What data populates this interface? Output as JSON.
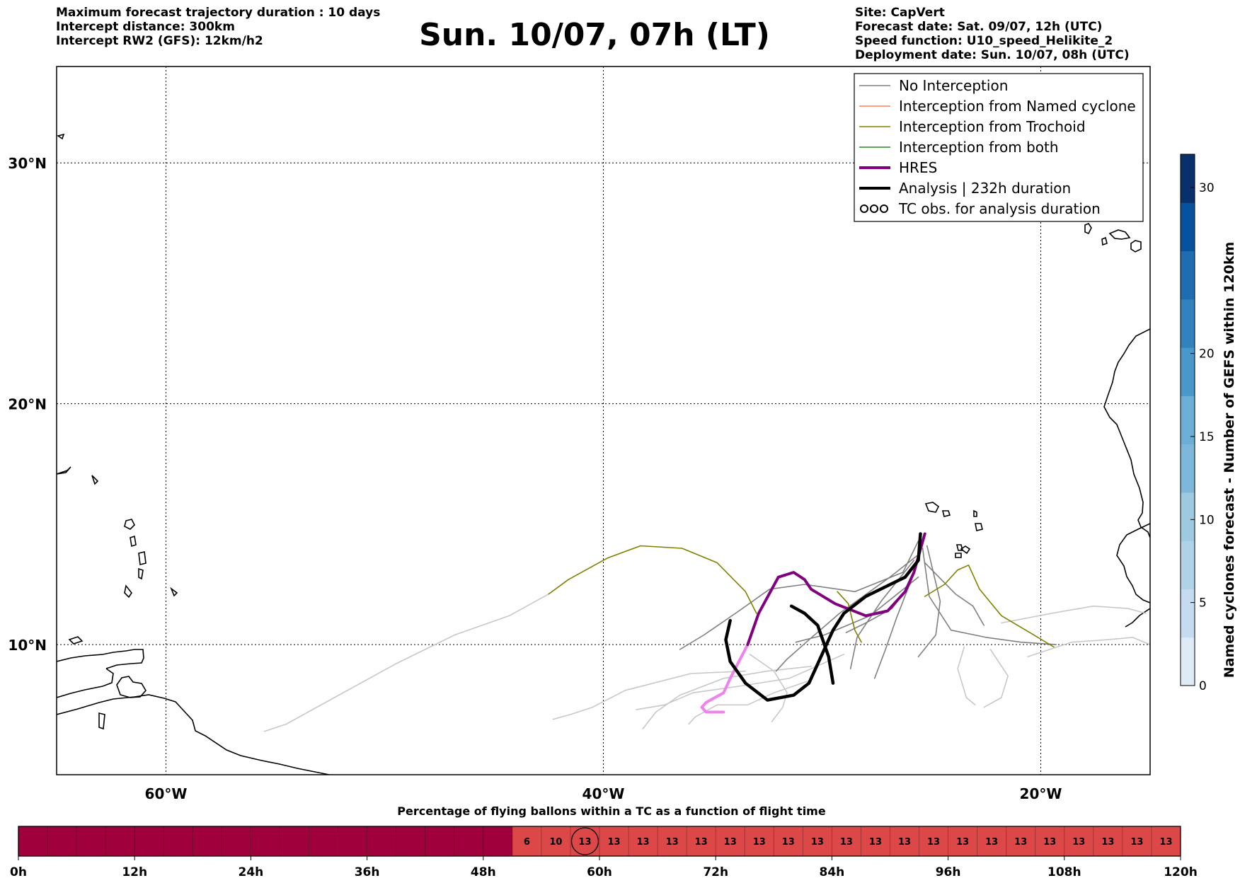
{
  "header": {
    "left_lines": [
      "Maximum forecast trajectory duration : 10 days",
      "Intercept distance: 300km",
      "Intercept RW2 (GFS):  12km/h2"
    ],
    "title": "Sun. 10/07, 07h (LT)",
    "right_lines": [
      "Site: CapVert",
      "Forecast date: Sat. 09/07, 12h (UTC)",
      "Speed function: U10_speed_Helikite_2",
      "Deployment date: Sun. 10/07, 08h (UTC)"
    ]
  },
  "colors": {
    "no_interception": "#808080",
    "named_cyclone": "#ff7f50",
    "trochoid": "#808000",
    "both": "#228b22",
    "hres": "#800080",
    "hres_light": "#ee82ee",
    "analysis": "#000000",
    "ensemble_light": "#c8c8c8",
    "bar_dark": "#a0003c",
    "bar_light": "#dc4848"
  },
  "chart_data": [
    {
      "type": "line",
      "subtype": "map-trajectories",
      "xaxis": {
        "ticks": [
          "60°W",
          "40°W",
          "20°W"
        ],
        "tick_values": [
          -60,
          -40,
          -20
        ],
        "range": [
          -65,
          -15
        ]
      },
      "yaxis": {
        "ticks": [
          "10°N",
          "20°N",
          "30°N"
        ],
        "tick_values": [
          10,
          20,
          30
        ],
        "range": [
          4.6,
          34
        ]
      },
      "grid": true,
      "legend": {
        "position": "top-right",
        "entries": [
          {
            "label": "No Interception",
            "color": "#808080",
            "style": "line"
          },
          {
            "label": "Interception from Named cyclone",
            "color": "#ff7f50",
            "style": "line"
          },
          {
            "label": "Interception from Trochoid",
            "color": "#808000",
            "style": "line"
          },
          {
            "label": "Interception from both",
            "color": "#228b22",
            "style": "line"
          },
          {
            "label": "HRES",
            "color": "#800080",
            "style": "thick"
          },
          {
            "label": "Analysis | 232h duration",
            "color": "#000000",
            "style": "thick"
          },
          {
            "label": "TC obs. for analysis duration",
            "color": "#000000",
            "style": "symbol"
          }
        ]
      },
      "series": [
        {
          "group": "analysis",
          "points": [
            [
              -25.5,
              14.6
            ],
            [
              -25.6,
              13.5
            ],
            [
              -26.2,
              12.8
            ],
            [
              -28,
              12
            ],
            [
              -29,
              11.3
            ],
            [
              -29.5,
              10.6
            ],
            [
              -30,
              9.6
            ],
            [
              -30.6,
              8.4
            ],
            [
              -31.3,
              7.9
            ],
            [
              -32.5,
              7.7
            ],
            [
              -33.5,
              8.4
            ],
            [
              -34.2,
              9.3
            ],
            [
              -34.4,
              10.2
            ],
            [
              -34.2,
              11
            ]
          ]
        },
        {
          "group": "analysis",
          "points": [
            [
              -29.5,
              8.4
            ],
            [
              -29.7,
              9.5
            ],
            [
              -30.2,
              10.8
            ],
            [
              -30.8,
              11.3
            ],
            [
              -31.4,
              11.6
            ]
          ]
        },
        {
          "group": "hres",
          "points": [
            [
              -25.3,
              14.6
            ],
            [
              -25.8,
              13
            ],
            [
              -26.2,
              12.2
            ],
            [
              -27,
              11.4
            ],
            [
              -28,
              11.2
            ],
            [
              -29.4,
              11.7
            ],
            [
              -30.5,
              12.3
            ],
            [
              -30.8,
              12.7
            ],
            [
              -31.3,
              13.0
            ],
            [
              -32,
              12.8
            ],
            [
              -32.9,
              11.3
            ],
            [
              -33.4,
              10
            ]
          ]
        },
        {
          "group": "hres_light",
          "points": [
            [
              -33.4,
              10
            ],
            [
              -34.2,
              8.6
            ],
            [
              -34.5,
              8
            ],
            [
              -35.3,
              7.6
            ],
            [
              -35.5,
              7.4
            ],
            [
              -35.3,
              7.2
            ],
            [
              -34.5,
              7.2
            ]
          ]
        },
        {
          "group": "trochoid",
          "points": [
            [
              -33,
              11.3
            ],
            [
              -33.5,
              12.2
            ],
            [
              -34.8,
              13.4
            ],
            [
              -36.4,
              14.0
            ],
            [
              -38.3,
              14.1
            ],
            [
              -39.8,
              13.6
            ],
            [
              -41.6,
              12.7
            ],
            [
              -42.5,
              12.1
            ]
          ]
        },
        {
          "group": "trochoid",
          "points": [
            [
              -25.3,
              12
            ],
            [
              -24.4,
              12.5
            ],
            [
              -23.8,
              13.1
            ],
            [
              -23.3,
              13.3
            ],
            [
              -22.8,
              12.3
            ],
            [
              -21.8,
              11.2
            ],
            [
              -20.5,
              10.5
            ],
            [
              -19.4,
              9.9
            ]
          ]
        },
        {
          "group": "trochoid",
          "points": [
            [
              -29.3,
              12.2
            ],
            [
              -28.8,
              11.7
            ],
            [
              -28.5,
              10.6
            ],
            [
              -28.2,
              10.1
            ]
          ]
        },
        {
          "group": "no_interception",
          "points": [
            [
              -25.6,
              14.3
            ],
            [
              -26.3,
              13
            ],
            [
              -28.5,
              12.2
            ],
            [
              -30.8,
              12.5
            ],
            [
              -32.4,
              12.3
            ],
            [
              -33.8,
              11.4
            ],
            [
              -35.4,
              10.4
            ],
            [
              -36.5,
              9.8
            ]
          ]
        },
        {
          "group": "no_interception",
          "points": [
            [
              -25.4,
              14
            ],
            [
              -25.1,
              12
            ],
            [
              -24.1,
              10.6
            ],
            [
              -22.5,
              10.3
            ],
            [
              -20.9,
              10.1
            ],
            [
              -19.3,
              10
            ]
          ]
        },
        {
          "group": "no_interception",
          "points": [
            [
              -25.8,
              13.5
            ],
            [
              -27.3,
              11.8
            ],
            [
              -28.4,
              10.3
            ],
            [
              -28.7,
              9
            ]
          ]
        },
        {
          "group": "no_interception",
          "points": [
            [
              -25.5,
              13.8
            ],
            [
              -26.9,
              12.8
            ],
            [
              -29.2,
              11.3
            ],
            [
              -30.6,
              10.2
            ],
            [
              -31.6,
              9.4
            ],
            [
              -32.1,
              8.9
            ]
          ]
        },
        {
          "group": "no_interception",
          "points": [
            [
              -25.2,
              14.1
            ],
            [
              -24.6,
              11.8
            ],
            [
              -24.8,
              10.4
            ],
            [
              -25.6,
              9.5
            ]
          ]
        },
        {
          "group": "no_interception",
          "points": [
            [
              -25.7,
              13.2
            ],
            [
              -26.6,
              11.1
            ],
            [
              -27.1,
              9.8
            ],
            [
              -27.6,
              8.6
            ]
          ]
        },
        {
          "group": "no_interception",
          "points": [
            [
              -25.3,
              13.4
            ],
            [
              -23.9,
              12.1
            ],
            [
              -23.1,
              11.6
            ],
            [
              -22.6,
              10.8
            ]
          ]
        },
        {
          "group": "no_interception",
          "points": [
            [
              -25.6,
              12.8
            ],
            [
              -27.8,
              11.2
            ],
            [
              -29.9,
              10.4
            ],
            [
              -31.2,
              10.1
            ]
          ]
        },
        {
          "group": "no_interception",
          "points": [
            [
              -25.9,
              12.6
            ],
            [
              -26.8,
              11.5
            ],
            [
              -28,
              10.9
            ],
            [
              -28.9,
              10.5
            ]
          ]
        },
        {
          "group": "ensemble_light",
          "points": [
            [
              -42.5,
              12.1
            ],
            [
              -44.3,
              11.2
            ],
            [
              -46.8,
              10.4
            ],
            [
              -49.5,
              9.2
            ],
            [
              -52.3,
              7.8
            ],
            [
              -54.5,
              6.7
            ],
            [
              -55.5,
              6.4
            ]
          ]
        },
        {
          "group": "ensemble_light",
          "points": [
            [
              -33.5,
              8.9
            ],
            [
              -36,
              8.8
            ],
            [
              -39,
              8.1
            ],
            [
              -40.5,
              7.4
            ],
            [
              -41.5,
              7.1
            ],
            [
              -42.3,
              6.9
            ]
          ]
        },
        {
          "group": "ensemble_light",
          "points": [
            [
              -30.5,
              9.1
            ],
            [
              -32.5,
              8.9
            ],
            [
              -34.5,
              8.6
            ],
            [
              -36.5,
              7.9
            ],
            [
              -37.6,
              7.2
            ],
            [
              -38.2,
              6.5
            ]
          ]
        },
        {
          "group": "ensemble_light",
          "points": [
            [
              -29,
              9.6
            ],
            [
              -31.5,
              8.6
            ],
            [
              -33.6,
              8.3
            ],
            [
              -35.9,
              8.0
            ],
            [
              -37.2,
              7.5
            ],
            [
              -38.5,
              7.3
            ]
          ]
        },
        {
          "group": "ensemble_light",
          "points": [
            [
              -30.6,
              8.5
            ],
            [
              -32.2,
              8.0
            ],
            [
              -33.4,
              7.5
            ],
            [
              -34.8,
              7.5
            ],
            [
              -35.8,
              7.0
            ],
            [
              -36.1,
              6.7
            ]
          ]
        },
        {
          "group": "ensemble_light",
          "points": [
            [
              -21.8,
              10.9
            ],
            [
              -19.5,
              11.3
            ],
            [
              -17.6,
              11.6
            ],
            [
              -16,
              11.5
            ],
            [
              -15.2,
              11.3
            ]
          ]
        },
        {
          "group": "ensemble_light",
          "points": [
            [
              -20.6,
              9.5
            ],
            [
              -18.6,
              10.1
            ],
            [
              -17,
              10.2
            ],
            [
              -15.8,
              10.3
            ],
            [
              -15,
              10.0
            ]
          ]
        },
        {
          "group": "ensemble_light",
          "points": [
            [
              -22.3,
              9.8
            ],
            [
              -21.5,
              8.7
            ],
            [
              -21.8,
              7.8
            ],
            [
              -22.6,
              7.4
            ]
          ]
        },
        {
          "group": "ensemble_light",
          "points": [
            [
              -23.5,
              9.9
            ],
            [
              -23.8,
              9.0
            ],
            [
              -23.4,
              7.8
            ],
            [
              -23.0,
              7.5
            ]
          ]
        },
        {
          "group": "ensemble_light",
          "points": [
            [
              -33.3,
              9.6
            ],
            [
              -32.2,
              8.9
            ],
            [
              -31.6,
              8.0
            ],
            [
              -31.8,
              7.4
            ],
            [
              -32.3,
              6.8
            ]
          ]
        }
      ]
    },
    {
      "type": "bar",
      "subtype": "segmented-timeline",
      "title": "Percentage of flying ballons within a TC as a function of flight time",
      "x_ticks": [
        "0h",
        "12h",
        "24h",
        "36h",
        "48h",
        "60h",
        "72h",
        "84h",
        "96h",
        "108h",
        "120h"
      ],
      "x_tick_values": [
        0,
        12,
        24,
        36,
        48,
        60,
        72,
        84,
        96,
        108,
        120
      ],
      "step_hours": 3,
      "values": [
        0,
        0,
        0,
        0,
        0,
        0,
        0,
        0,
        0,
        0,
        0,
        0,
        0,
        0,
        0,
        0,
        0,
        6,
        10,
        13,
        13,
        13,
        13,
        13,
        13,
        13,
        13,
        13,
        13,
        13,
        13,
        13,
        13,
        13,
        13,
        13,
        13,
        13,
        13,
        13
      ],
      "labels": [
        "",
        "",
        "",
        "",
        "",
        "",
        "",
        "",
        "",
        "",
        "",
        "",
        "",
        "",
        "",
        "",
        "",
        "6",
        "10",
        "13",
        "13",
        "13",
        "13",
        "13",
        "13",
        "13",
        "13",
        "13",
        "13",
        "13",
        "13",
        "13",
        "13",
        "13",
        "13",
        "13",
        "13",
        "13",
        "13",
        "13"
      ],
      "circled_index": 19
    },
    {
      "type": "heatmap",
      "subtype": "colorbar",
      "label": "Named cyclones forecast - Number of GEFS within 120km",
      "ticks": [
        "0",
        "5",
        "10",
        "15",
        "20",
        "30"
      ],
      "tick_values": [
        0,
        5,
        10,
        15,
        20,
        30
      ],
      "range": [
        0,
        32
      ],
      "colors": [
        "#deebf7",
        "#c6dbef",
        "#b0d2e8",
        "#9ecae1",
        "#7db8da",
        "#6baed6",
        "#4a98c9",
        "#3182bd",
        "#1f6db1",
        "#08519c",
        "#08306b"
      ]
    }
  ]
}
